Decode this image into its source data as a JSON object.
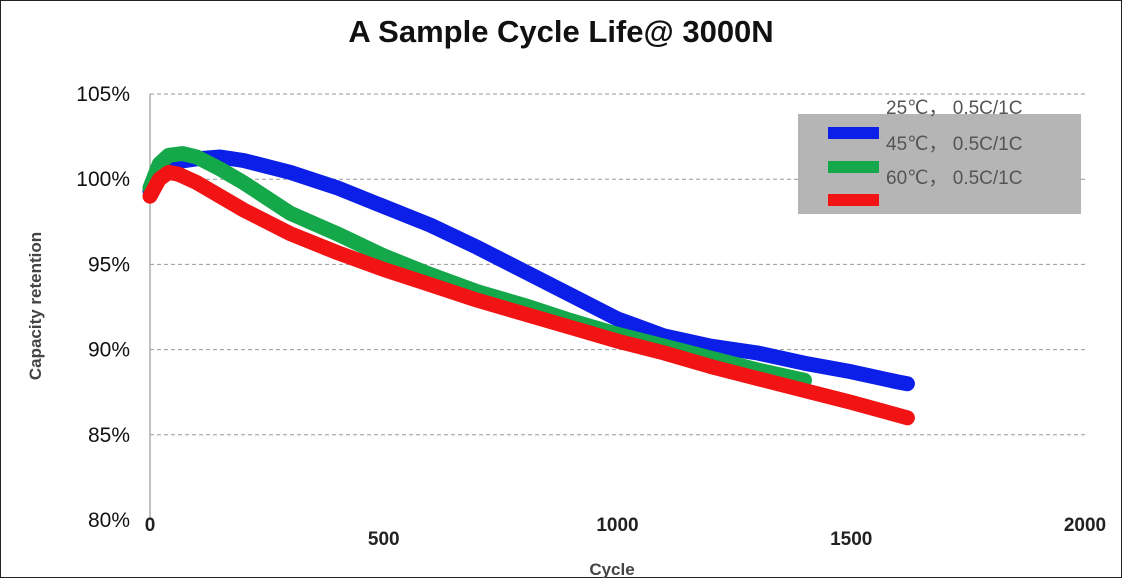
{
  "chart_data": {
    "type": "line",
    "title": "A Sample Cycle Life@ 3000N",
    "xlabel": "Cycle",
    "ylabel": "Capacity retention",
    "xlim": [
      0,
      2000
    ],
    "ylim": [
      80,
      105
    ],
    "x_ticks": [
      "0",
      "500",
      "1000",
      "1500",
      "2000"
    ],
    "y_ticks": [
      "80%",
      "85%",
      "90%",
      "95%",
      "100%",
      "105%"
    ],
    "grid": "horizontal dashed",
    "legend_position": "top-right",
    "legend_labels": [
      "25℃， 0.5C/1C",
      "45℃， 0.5C/1C",
      "60℃， 0.5C/1C"
    ],
    "series": [
      {
        "color": "#0b1fe8",
        "x": [
          0,
          20,
          50,
          100,
          150,
          200,
          300,
          400,
          500,
          600,
          700,
          800,
          900,
          1000,
          1100,
          1200,
          1300,
          1400,
          1500,
          1600,
          1620
        ],
        "y": [
          99.3,
          100.5,
          101.0,
          101.2,
          101.3,
          101.1,
          100.4,
          99.5,
          98.4,
          97.3,
          96.0,
          94.6,
          93.2,
          91.8,
          90.8,
          90.2,
          89.8,
          89.2,
          88.7,
          88.1,
          88.0
        ]
      },
      {
        "color": "#15a84a",
        "x": [
          0,
          20,
          40,
          70,
          100,
          150,
          200,
          300,
          400,
          500,
          600,
          700,
          800,
          900,
          1000,
          1100,
          1200,
          1300,
          1400
        ],
        "y": [
          99.5,
          100.9,
          101.4,
          101.5,
          101.3,
          100.6,
          99.8,
          98.0,
          96.8,
          95.5,
          94.4,
          93.4,
          92.6,
          91.7,
          90.9,
          90.2,
          89.5,
          88.8,
          88.2
        ]
      },
      {
        "color": "#f21414",
        "x": [
          0,
          20,
          40,
          60,
          100,
          200,
          300,
          400,
          500,
          600,
          700,
          800,
          900,
          1000,
          1100,
          1200,
          1300,
          1400,
          1500,
          1620
        ],
        "y": [
          99.0,
          100.0,
          100.4,
          100.3,
          99.8,
          98.2,
          96.8,
          95.7,
          94.7,
          93.8,
          92.9,
          92.1,
          91.3,
          90.5,
          89.8,
          89.0,
          88.3,
          87.6,
          86.9,
          86.0
        ]
      }
    ]
  }
}
